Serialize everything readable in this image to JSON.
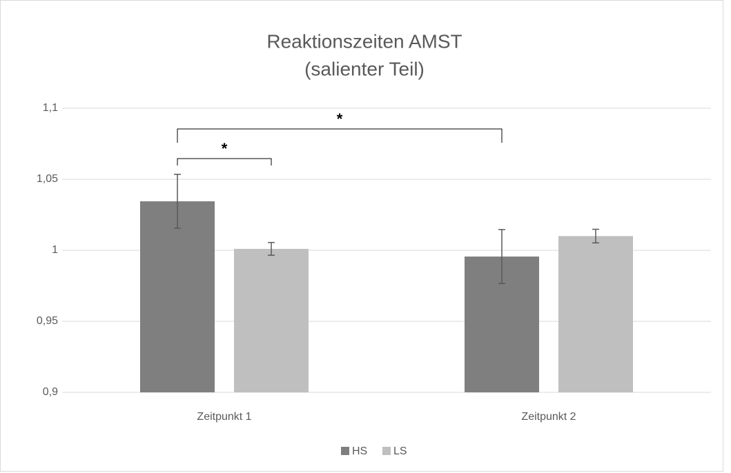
{
  "chart_data": {
    "type": "bar",
    "title": [
      "Reaktionszeiten AMST",
      "(salienter Teil)"
    ],
    "categories": [
      "Zeitpunkt 1",
      "Zeitpunkt 2"
    ],
    "series": [
      {
        "name": "HS",
        "color": "#7f7f7f",
        "values": [
          1.0345,
          0.9956
        ],
        "errors": [
          0.019,
          0.019
        ]
      },
      {
        "name": "LS",
        "color": "#bfbfbf",
        "values": [
          1.001,
          1.01
        ],
        "errors": [
          0.0045,
          0.0048
        ]
      }
    ],
    "ylim": [
      0.9,
      1.1
    ],
    "yticks": [
      {
        "value": 0.9,
        "label": "0,9"
      },
      {
        "value": 0.95,
        "label": "0,95"
      },
      1,
      {
        "value": 1.05,
        "label": "1,05"
      },
      {
        "value": 1.1,
        "label": "1,1"
      }
    ],
    "grid": true,
    "legend": "bottom",
    "annotations": [
      "*",
      "*"
    ]
  }
}
